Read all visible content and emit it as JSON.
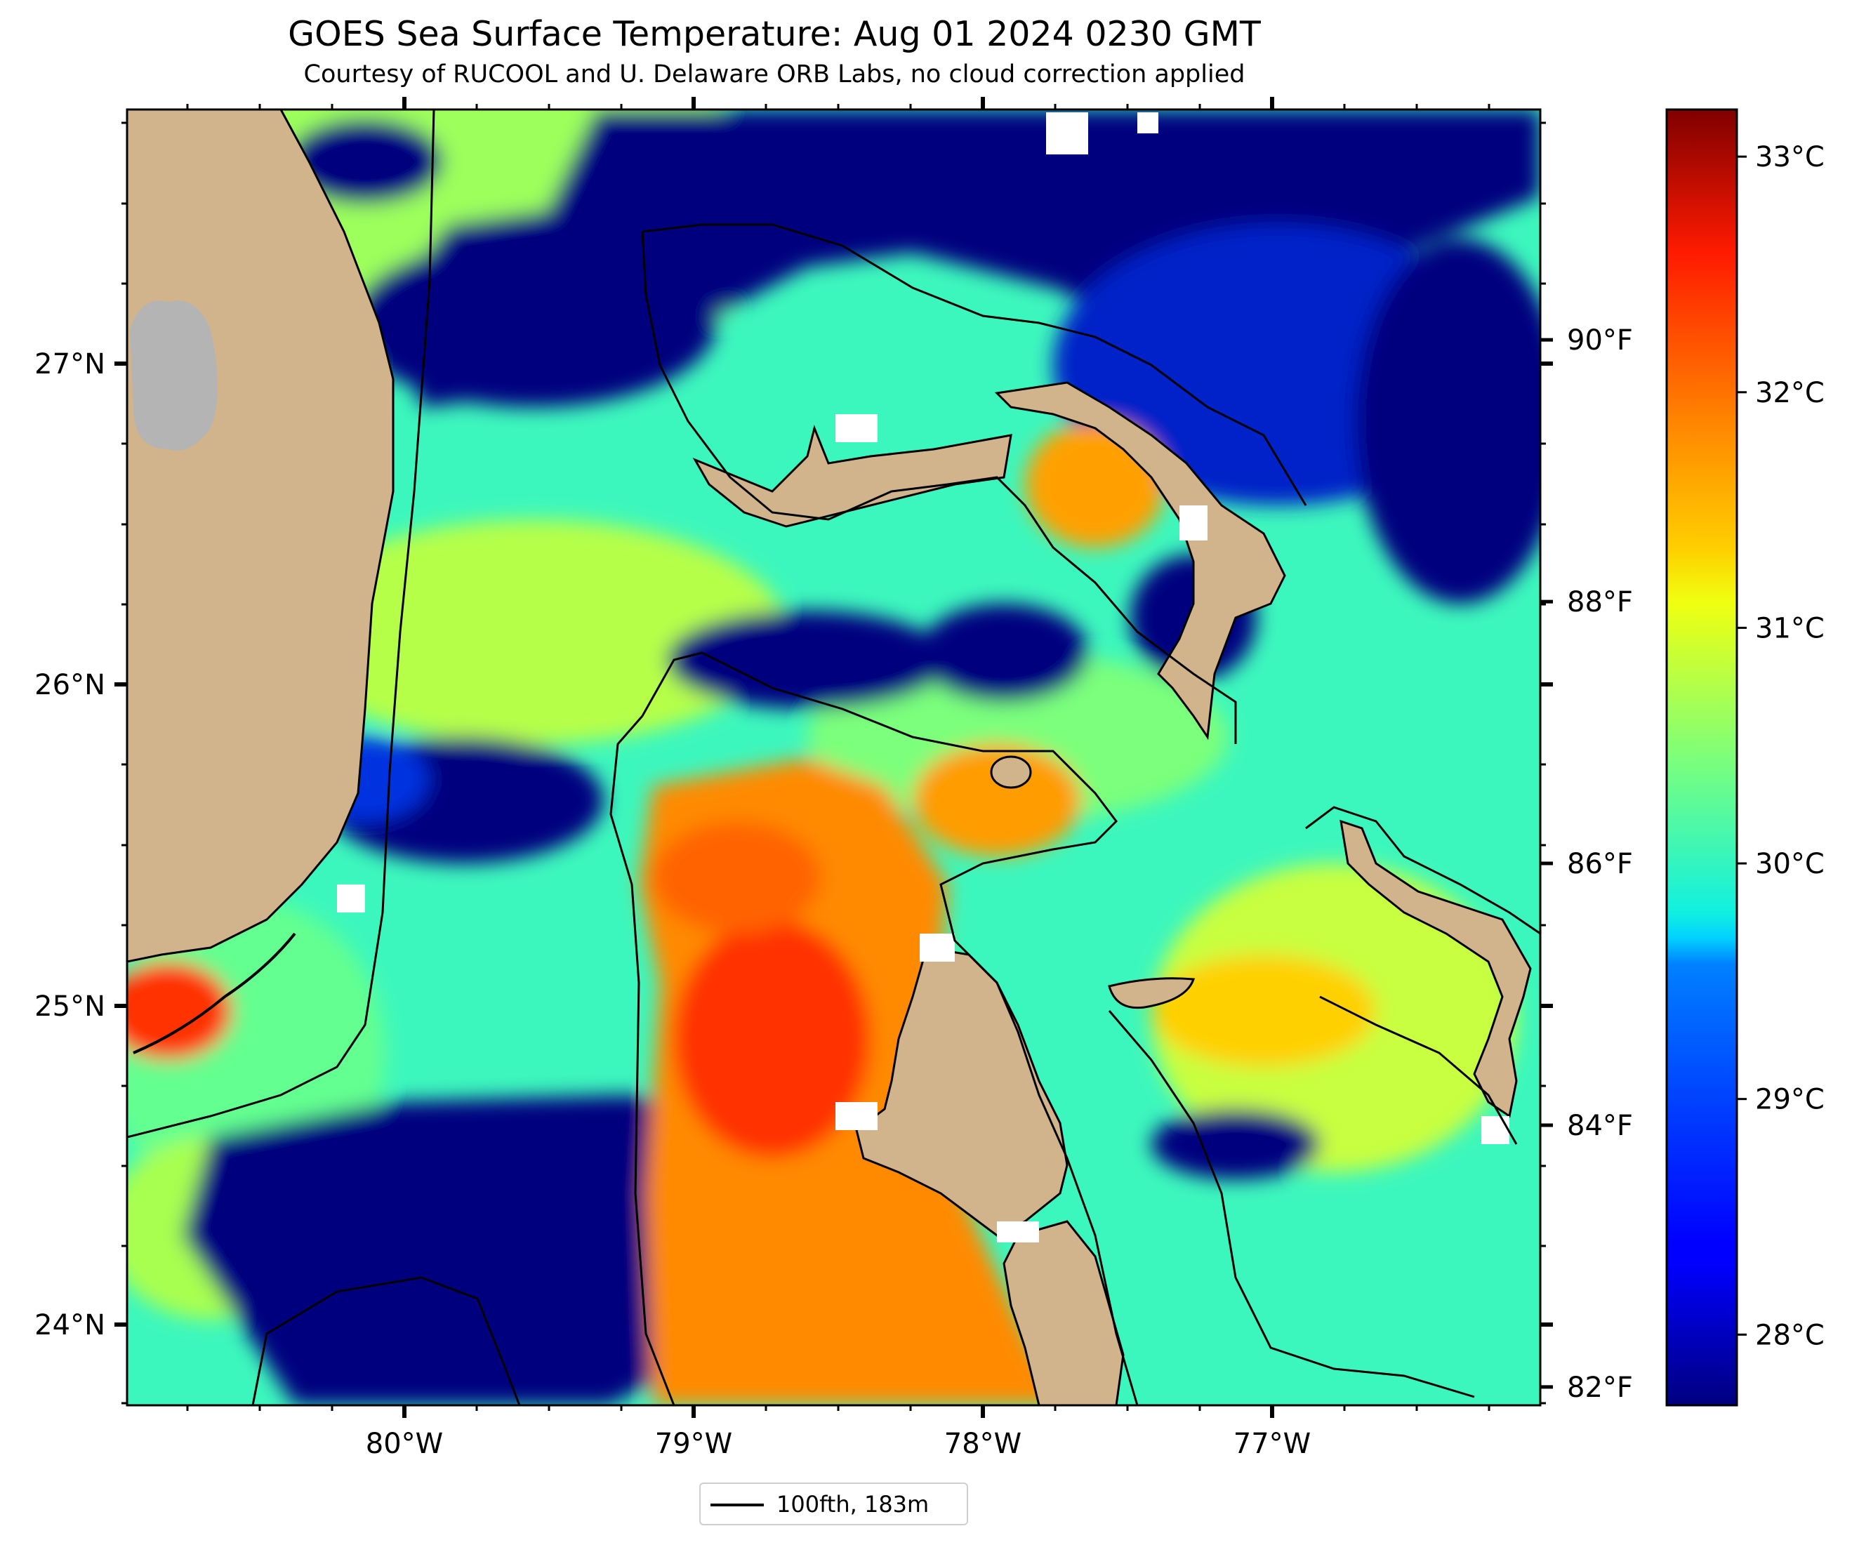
{
  "title": "GOES Sea Surface Temperature: Aug 01 2024 0230 GMT",
  "subtitle": "Courtesy of RUCOOL and U. Delaware ORB Labs, no cloud correction applied",
  "map": {
    "lon_labels": [
      "80°W",
      "79°W",
      "78°W",
      "77°W"
    ],
    "lat_labels": [
      "27°N",
      "26°N",
      "25°N",
      "24°N"
    ],
    "lon_ticks": [
      -80,
      -79,
      -78,
      -77
    ],
    "lat_ticks": [
      27,
      26,
      25,
      24
    ],
    "extent": {
      "lon_min": -80.95,
      "lon_max": -76.05,
      "lat_min": 23.75,
      "lat_max": 27.8
    }
  },
  "colorbar": {
    "colormap": "jet",
    "celsius_range": [
      27.7,
      33.2
    ],
    "celsius_labels": [
      "33°C",
      "32°C",
      "31°C",
      "30°C",
      "29°C",
      "28°C"
    ],
    "celsius_values": [
      33,
      32,
      31,
      30,
      29,
      28
    ],
    "fahrenheit_labels": [
      "90°F",
      "88°F",
      "86°F",
      "84°F",
      "82°F"
    ],
    "fahrenheit_values": [
      90,
      88,
      86,
      84,
      82
    ]
  },
  "legend": {
    "label": "100fth, 183m"
  },
  "colors": {
    "land": "#d2b48c",
    "lake": "#b4b4b4",
    "cloud_cold": "#00007f",
    "missing": "#ffffff"
  }
}
